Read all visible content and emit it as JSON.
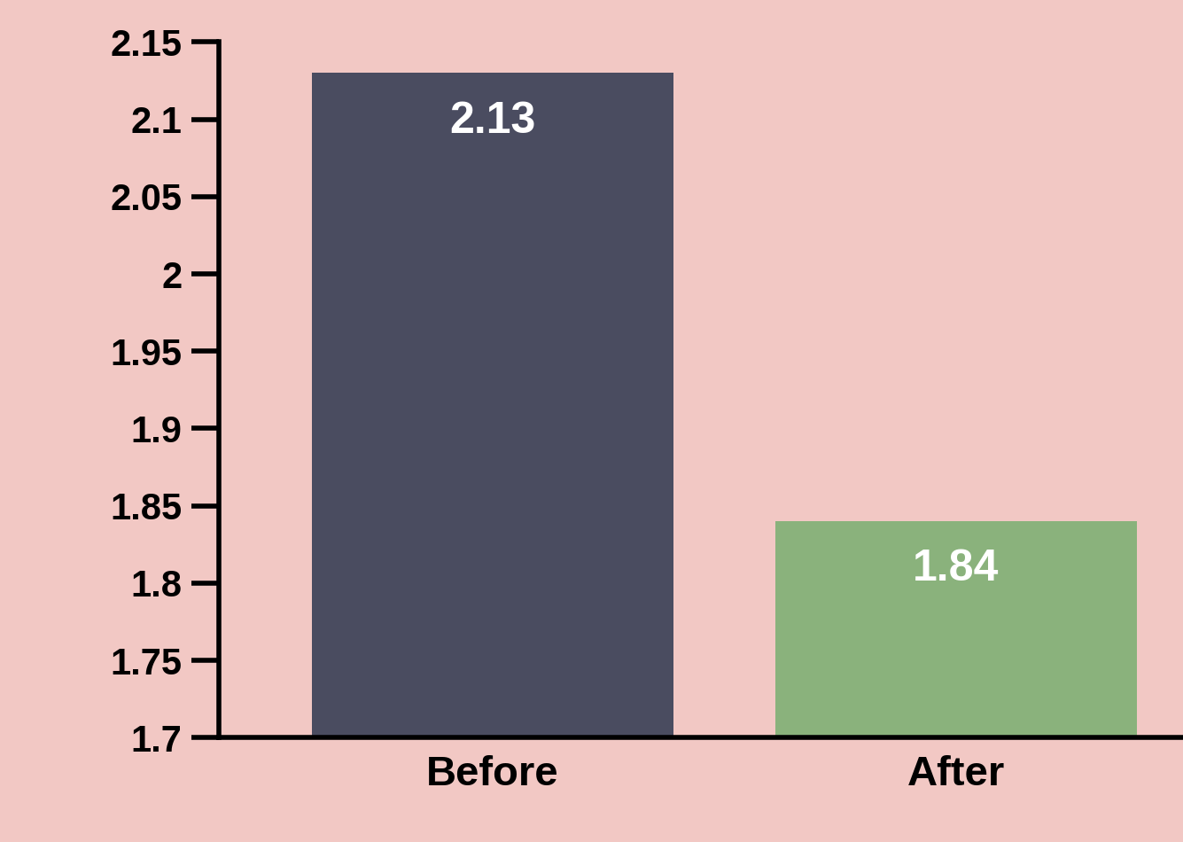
{
  "chart_data": {
    "type": "bar",
    "categories": [
      "Before",
      "After"
    ],
    "values": [
      2.13,
      1.84
    ],
    "colors": [
      "#4a4c60",
      "#8ab27c"
    ],
    "ylim": [
      1.7,
      2.15
    ],
    "yticks": [
      1.7,
      1.75,
      1.8,
      1.85,
      1.9,
      1.95,
      2,
      2.05,
      2.1,
      2.15
    ],
    "data_labels": true,
    "grid": false
  }
}
